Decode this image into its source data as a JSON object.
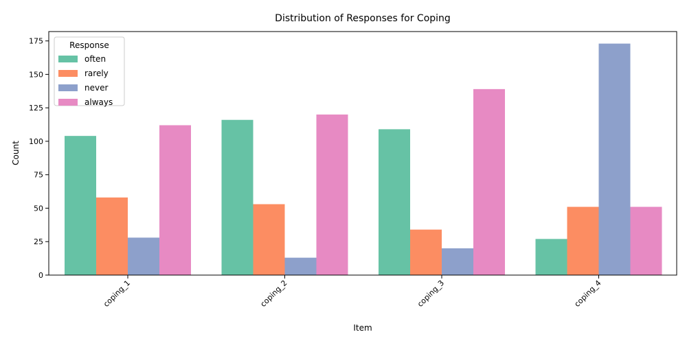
{
  "chart_data": {
    "type": "bar",
    "title": "Distribution of Responses for Coping",
    "xlabel": "Item",
    "ylabel": "Count",
    "categories": [
      "coping_1",
      "coping_2",
      "coping_3",
      "coping_4"
    ],
    "series": [
      {
        "name": "often",
        "color": "#66c2a5",
        "values": [
          104,
          116,
          109,
          27
        ]
      },
      {
        "name": "rarely",
        "color": "#fc8d62",
        "values": [
          58,
          53,
          34,
          51
        ]
      },
      {
        "name": "never",
        "color": "#8da0cb",
        "values": [
          28,
          13,
          20,
          173
        ]
      },
      {
        "name": "always",
        "color": "#e78ac3",
        "values": [
          112,
          120,
          139,
          51
        ]
      }
    ],
    "ylim": [
      0,
      182
    ],
    "yticks": [
      0,
      25,
      50,
      75,
      100,
      125,
      150,
      175
    ],
    "legend": {
      "title": "Response",
      "placement": "top-left"
    },
    "grid": false
  }
}
